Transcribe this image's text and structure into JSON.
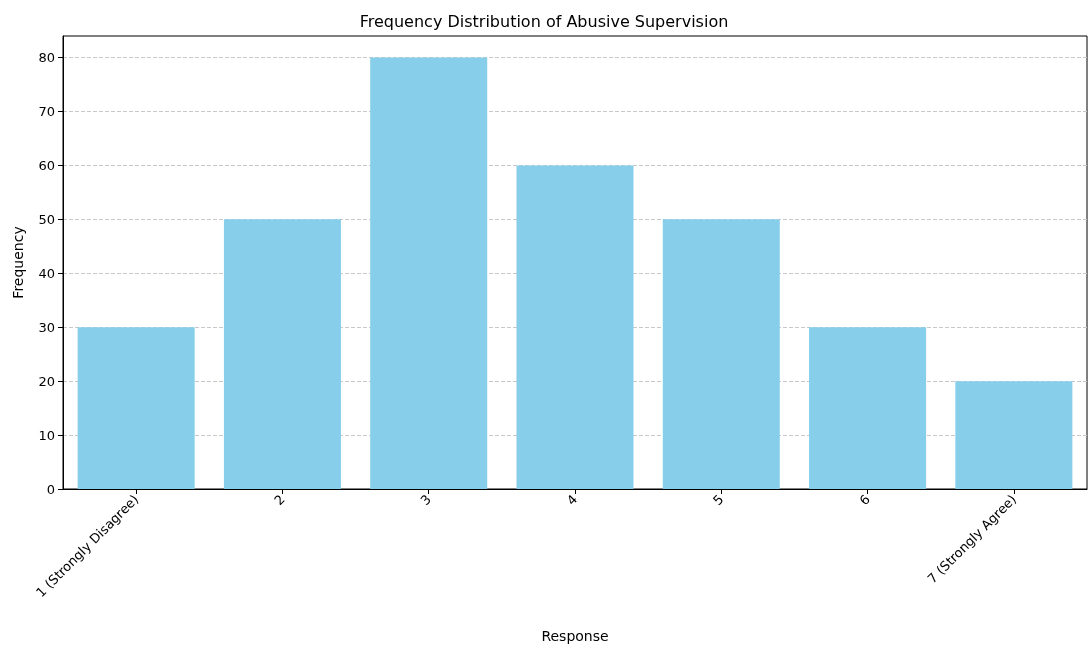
{
  "chart_data": {
    "type": "bar",
    "title": "Frequency Distribution of Abusive Supervision",
    "xlabel": "Response",
    "ylabel": "Frequency",
    "categories": [
      "1 (Strongly Disagree)",
      "2",
      "3",
      "4",
      "5",
      "6",
      "7 (Strongly Agree)"
    ],
    "values": [
      30,
      50,
      80,
      60,
      50,
      30,
      20
    ],
    "color": "#87ceeb",
    "ylim": [
      0,
      84
    ],
    "yticks": [
      0,
      10,
      20,
      30,
      40,
      50,
      60,
      70,
      80
    ],
    "grid": "y"
  }
}
